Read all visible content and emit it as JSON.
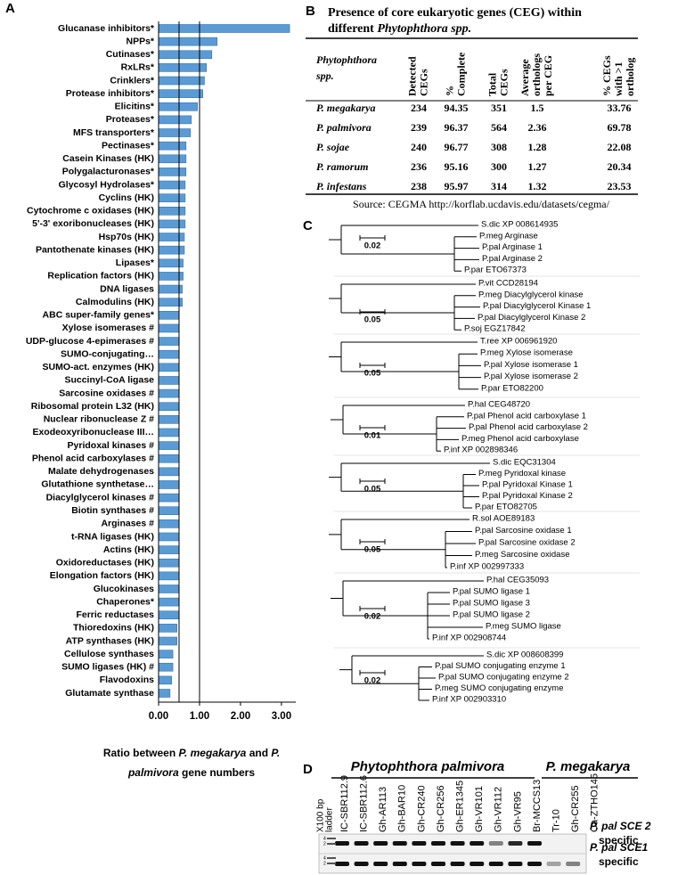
{
  "panels": {
    "a": "A",
    "b": "B",
    "c": "C",
    "d": "D"
  },
  "chart_data": {
    "type": "hbar",
    "categories": [
      "Glucanase inhibitors*",
      "NPPs*",
      "Cutinases*",
      "RxLRs*",
      "Crinklers*",
      "Protease inhibitors*",
      "Elicitins*",
      "Proteases*",
      "MFS transporters*",
      "Pectinases*",
      "Casein Kinases (HK)",
      "Polygalacturonases*",
      "Glycosyl Hydrolases*",
      "Cyclins (HK)",
      "Cytochrome c oxidases (HK)",
      "5'-3' exoribonucleases (HK)",
      "Hsp70s (HK)",
      "Pantothenate kinases (HK)",
      "Lipases*",
      "Replication factors (HK)",
      "DNA ligases",
      "Calmodulins (HK)",
      "ABC super-family genes*",
      "Xylose isomerases #",
      "UDP-glucose 4-epimerases #",
      "SUMO-conjugating…",
      "SUMO-act. enzymes (HK)",
      "Succinyl-CoA ligase",
      "Sarcosine oxidases #",
      "Ribosomal protein L32 (HK)",
      "Nuclear ribonuclease Z #",
      "Exodeoxyribonuclease III…",
      "Pyridoxal kinases #",
      "Phenol acid carboxylases #",
      "Malate dehydrogenases",
      "Glutathione synthetase…",
      "Diacylglycerol kinases #",
      "Biotin synthases #",
      "Arginases #",
      "t-RNA ligases (HK)",
      "Actins (HK)",
      "Oxidoreductases (HK)",
      "Elongation factors (HK)",
      "Glucokinases",
      "Chaperones*",
      "Ferric reductases",
      "Thioredoxins (HK)",
      "ATP synthases (HK)",
      "Cellulose synthases",
      "SUMO ligases (HK) #",
      "Flavodoxins",
      "Glutamate synthase"
    ],
    "values": [
      3.2,
      1.43,
      1.3,
      1.17,
      1.12,
      1.08,
      0.95,
      0.8,
      0.78,
      0.67,
      0.67,
      0.67,
      0.65,
      0.65,
      0.65,
      0.65,
      0.63,
      0.63,
      0.6,
      0.6,
      0.58,
      0.58,
      0.5,
      0.5,
      0.5,
      0.5,
      0.5,
      0.5,
      0.5,
      0.5,
      0.5,
      0.5,
      0.5,
      0.5,
      0.5,
      0.5,
      0.5,
      0.5,
      0.5,
      0.5,
      0.5,
      0.5,
      0.5,
      0.5,
      0.5,
      0.5,
      0.45,
      0.45,
      0.35,
      0.35,
      0.32,
      0.28
    ],
    "color": "#5b9bd5",
    "xlim": [
      0,
      3.35
    ],
    "xticks": [
      {
        "value": 0,
        "label": "0.00"
      },
      {
        "value": 1,
        "label": "1.00"
      },
      {
        "value": 2,
        "label": "2.00"
      },
      {
        "value": 3,
        "label": "3.00"
      }
    ],
    "reference_lines": [
      0.5,
      1
    ],
    "xlabel": [
      "Ratio between",
      "P. megakarya",
      "and",
      "P.",
      "palmivora",
      "gene numbers"
    ]
  },
  "table": {
    "title": [
      "Presence of core eukaryotic genes (CEG) within",
      "different",
      "Phytophthora spp."
    ],
    "columns": [
      [
        "Phytophthora",
        "spp."
      ],
      [
        "Detected",
        "CEGs"
      ],
      [
        "%",
        "Complete"
      ],
      [
        "Total",
        "CEGs"
      ],
      [
        "Average",
        "orthologs",
        "per CEG"
      ],
      [
        "% CEGs",
        "with >1",
        "ortholog"
      ]
    ],
    "rows": [
      [
        "P. megakarya",
        "234",
        "94.35",
        "351",
        "1.5",
        "33.76"
      ],
      [
        "P. palmivora",
        "239",
        "96.37",
        "564",
        "2.36",
        "69.78"
      ],
      [
        "P. sojae",
        "240",
        "96.77",
        "308",
        "1.28",
        "22.08"
      ],
      [
        "P. ramorum",
        "236",
        "95.16",
        "300",
        "1.27",
        "20.34"
      ],
      [
        "P. infestans",
        "238",
        "95.97",
        "314",
        "1.32",
        "23.53"
      ]
    ],
    "source": "Source: CEGMA http://korflab.ucdavis.edu/datasets/cegma/"
  },
  "trees": [
    {
      "scale": "0.02",
      "leaves": [
        "S.dic XP 008614935",
        "P.meg Arginase",
        "P.pal Arginase 1",
        "P.pal Arginase 2",
        "P.par ETO67373"
      ]
    },
    {
      "scale": "0.05",
      "leaves": [
        "P.vit CCD28194",
        "P.meg Diacylglycerol kinase",
        "P.pal Diacylglycerol Kinase 1",
        "P.pal Diacylglycerol Kinase 2",
        "P.soj EGZ17842"
      ]
    },
    {
      "scale": "0.05",
      "leaves": [
        "T.ree XP 006961920",
        "P.meg Xylose isomerase",
        "P.pal Xylose isomerase 1",
        "P.pal Xylose isomerase 2",
        "P.par ETO82200"
      ]
    },
    {
      "scale": "0.01",
      "leaves": [
        "P.hal CEG48720",
        "P.pal Phenol acid carboxylase 1",
        "P.pal Phenol acid carboxylase 2",
        "P.meg Phenol acid carboxylase",
        "P.inf XP 002898346"
      ]
    },
    {
      "scale": "0.05",
      "leaves": [
        "S.dic EQC31304",
        "P.meg Pyridoxal kinase",
        "P.pal Pyridoxal Kinase 1",
        "P.pal Pyridoxal Kinase 2",
        "P.par ETO82705"
      ]
    },
    {
      "scale": "0.05",
      "leaves": [
        "R.sol AOE89183",
        "P.pal Sarcosine oxidase 1",
        "P.pal Sarcosine oxidase 2",
        "P.meg Sarcosine oxidase",
        "P.inf XP 002997333"
      ]
    },
    {
      "scale": "0.02",
      "leaves": [
        "P.hal CEG35093",
        "P.pal SUMO ligase 1",
        "P.pal SUMO ligase 3",
        "P.pal SUMO ligase 2",
        "P.meg SUMO ligase",
        "P.inf XP 002908744"
      ]
    },
    {
      "scale": "0.02",
      "leaves": [
        "S.dic XP 008608399",
        "P.pal SUMO conjugating enzyme 1",
        "P.pal SUMO conjugating enzyme 2",
        "P.meg SUMO conjugating enzyme",
        "P.inf XP 002903310"
      ]
    }
  ],
  "gel": {
    "groups": [
      "Phytophthora palmivora",
      "P. megakarya"
    ],
    "ladder": [
      "X100 bp",
      "ladder"
    ],
    "lanes": [
      "IC-SBR112.9",
      "IC-SBR112.6",
      "Gh-AR113",
      "Gh-BAR10",
      "Gh-CR240",
      "Gh-CR256",
      "Gh-ER1345",
      "Gh-VR101",
      "Gh-VR112",
      "Gh-VR95",
      "Br-MCCS13",
      "Tr-10",
      "Gh-CR255",
      "Ca-ZTHO145"
    ],
    "markers": [
      "4",
      "2"
    ],
    "rows": [
      [
        "P. pal SCE",
        " 2",
        "specific"
      ],
      [
        "P. pal SCE",
        "1",
        "specific"
      ]
    ]
  }
}
